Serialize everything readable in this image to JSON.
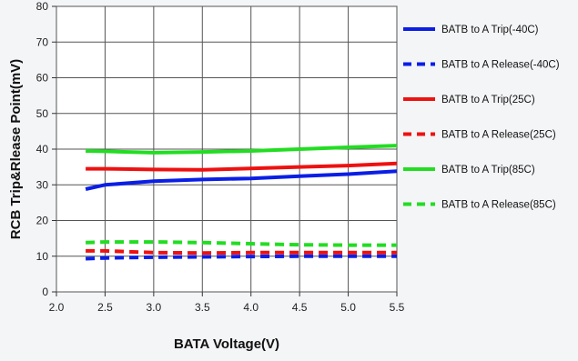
{
  "chart_data": {
    "type": "line",
    "title": "",
    "xlabel": "BATA Voltage(V)",
    "ylabel": "RCB Trip&Rlease Point(mV)",
    "xlim": [
      2.0,
      5.5
    ],
    "ylim": [
      0,
      80
    ],
    "xticks": [
      "2.0",
      "2.5",
      "3.0",
      "3.5",
      "4.0",
      "4.5",
      "5.0",
      "5.5"
    ],
    "yticks": [
      "0",
      "10",
      "20",
      "30",
      "40",
      "50",
      "60",
      "70",
      "80"
    ],
    "grid": true,
    "legend_position": "right",
    "x": [
      2.3,
      2.5,
      3.0,
      3.5,
      4.0,
      4.5,
      5.0,
      5.5
    ],
    "series": [
      {
        "name": "BATB to A Trip(-40C)",
        "color": "#0a1ee6",
        "dash": "solid",
        "values": [
          28.8,
          30.0,
          31.0,
          31.5,
          31.8,
          32.4,
          33.0,
          33.8
        ]
      },
      {
        "name": "BATB to A Release(-40C)",
        "color": "#0a1ee6",
        "dash": "dashed",
        "values": [
          9.3,
          9.5,
          9.7,
          9.8,
          9.9,
          10.0,
          10.0,
          10.0
        ]
      },
      {
        "name": "BATB to A Trip(25C)",
        "color": "#ee1111",
        "dash": "solid",
        "values": [
          34.5,
          34.5,
          34.3,
          34.2,
          34.6,
          35.0,
          35.4,
          36.0
        ]
      },
      {
        "name": "BATB to A Release(25C)",
        "color": "#ee1111",
        "dash": "dashed",
        "values": [
          11.5,
          11.5,
          11.0,
          10.9,
          11.0,
          11.0,
          11.0,
          11.0
        ]
      },
      {
        "name": "BATB to A Trip(85C)",
        "color": "#22dd22",
        "dash": "solid",
        "values": [
          39.5,
          39.4,
          39.0,
          39.2,
          39.5,
          40.0,
          40.5,
          41.0
        ]
      },
      {
        "name": "BATB to A Release(85C)",
        "color": "#22dd22",
        "dash": "dashed",
        "values": [
          13.8,
          14.0,
          14.0,
          13.8,
          13.5,
          13.2,
          13.1,
          13.1
        ]
      }
    ]
  }
}
